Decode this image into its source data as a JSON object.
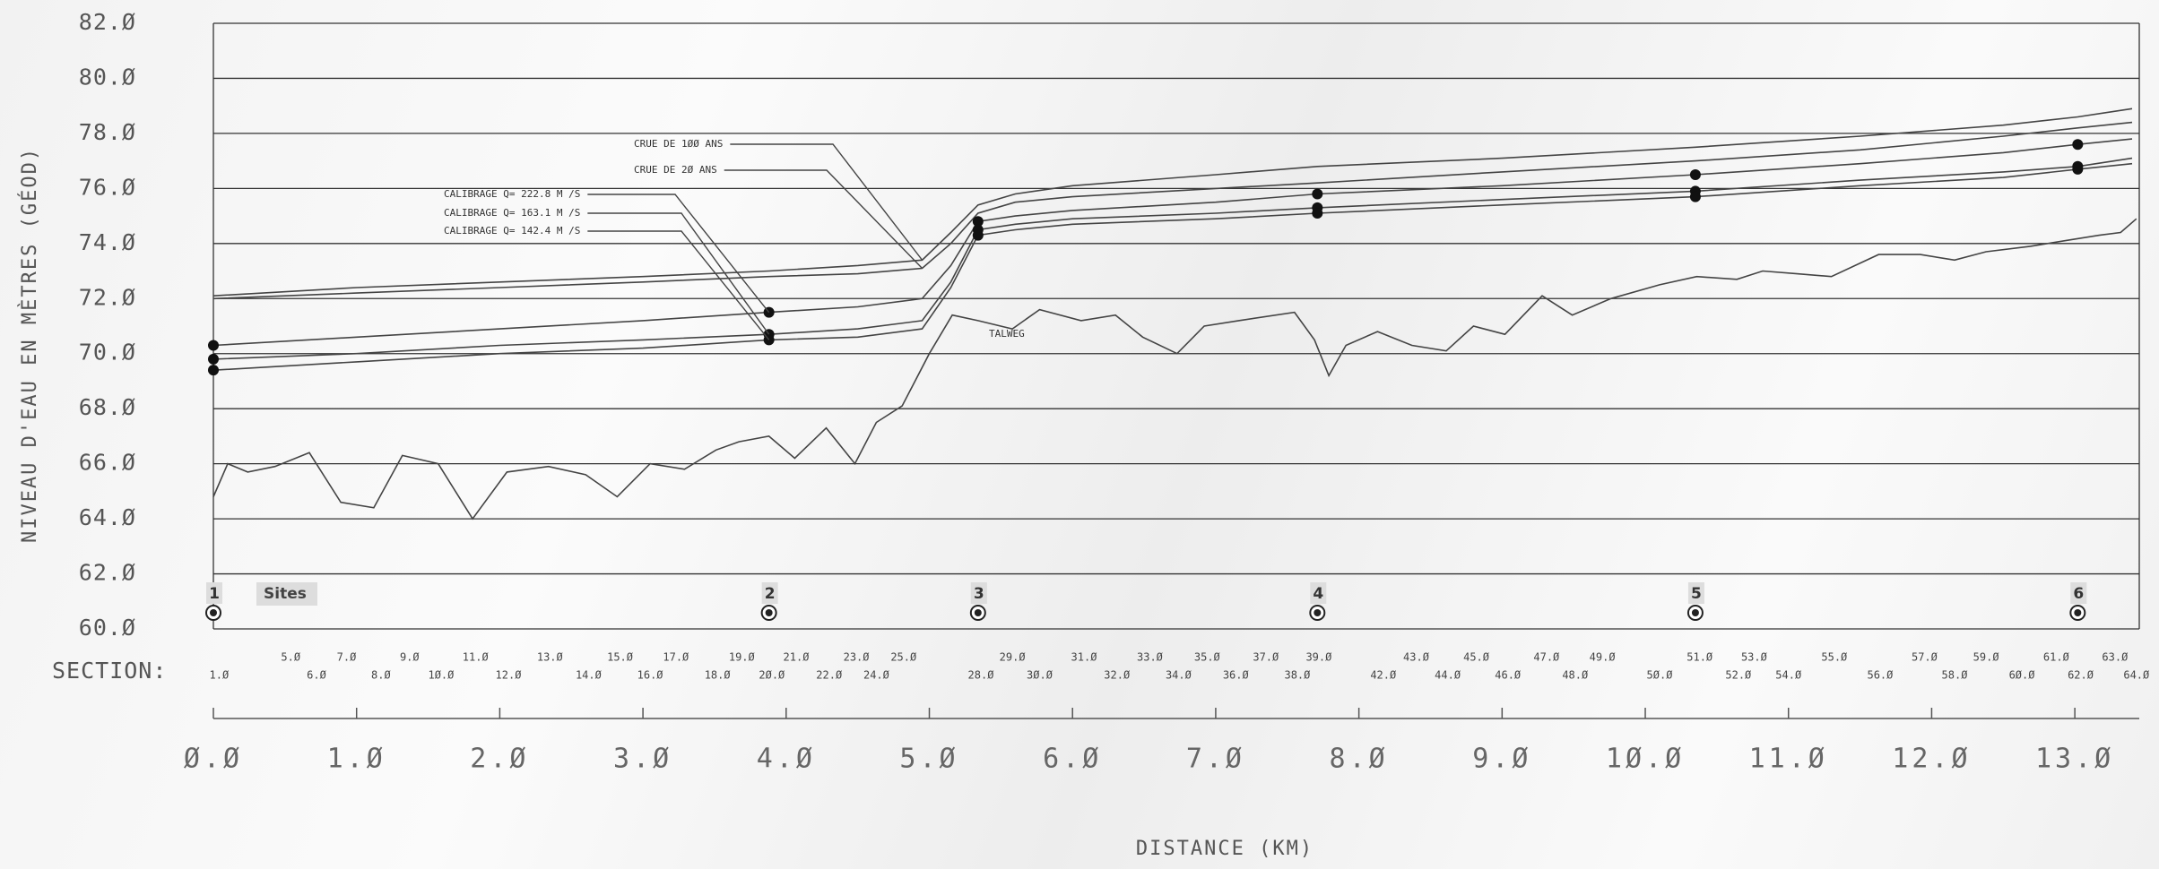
{
  "chart_data": {
    "type": "line",
    "y_label": "NIVEAU D'EAU EN MÈTRES (GÉOD)",
    "x_label": "DISTANCE (KM)",
    "ylim": [
      60,
      82
    ],
    "yticks": [
      {
        "value": 60,
        "label": "60.Ø"
      },
      {
        "value": 62,
        "label": "62.Ø"
      },
      {
        "value": 64,
        "label": "64.Ø"
      },
      {
        "value": 66,
        "label": "66.Ø"
      },
      {
        "value": 68,
        "label": "68.Ø"
      },
      {
        "value": 70,
        "label": "70.Ø"
      },
      {
        "value": 72,
        "label": "72.Ø"
      },
      {
        "value": 74,
        "label": "74.Ø"
      },
      {
        "value": 76,
        "label": "76.Ø"
      },
      {
        "value": 78,
        "label": "78.Ø"
      },
      {
        "value": 80,
        "label": "80.Ø"
      },
      {
        "value": 82,
        "label": "82.Ø"
      }
    ],
    "xlim": [
      0,
      13.45
    ],
    "xticks": [
      {
        "value": 0,
        "label": "Ø.Ø"
      },
      {
        "value": 1,
        "label": "1.Ø"
      },
      {
        "value": 2,
        "label": "2.Ø"
      },
      {
        "value": 3,
        "label": "3.Ø"
      },
      {
        "value": 4,
        "label": "4.Ø"
      },
      {
        "value": 5,
        "label": "5.Ø"
      },
      {
        "value": 6,
        "label": "6.Ø"
      },
      {
        "value": 7,
        "label": "7.Ø"
      },
      {
        "value": 8,
        "label": "8.Ø"
      },
      {
        "value": 9,
        "label": "9.Ø"
      },
      {
        "value": 10,
        "label": "1Ø.Ø"
      },
      {
        "value": 11,
        "label": "11.Ø"
      },
      {
        "value": 12,
        "label": "12.Ø"
      },
      {
        "value": 13,
        "label": "13.Ø"
      }
    ],
    "grid": true,
    "series": [
      {
        "name": "CRUE DE 1ØØ ANS",
        "color": "#444444",
        "x": [
          0,
          1,
          2,
          3,
          3.88,
          4.5,
          4.95,
          5.15,
          5.34,
          5.6,
          6.0,
          7.0,
          7.71,
          9.0,
          10.35,
          11.5,
          12.5,
          13.02,
          13.4
        ],
        "values": [
          72.1,
          72.4,
          72.6,
          72.8,
          73.0,
          73.2,
          73.4,
          74.4,
          75.4,
          75.8,
          76.1,
          76.5,
          76.8,
          77.1,
          77.5,
          77.9,
          78.3,
          78.6,
          78.9
        ]
      },
      {
        "name": "CRUE DE 2Ø ANS",
        "color": "#444444",
        "x": [
          0,
          1,
          2,
          3,
          3.88,
          4.5,
          4.95,
          5.15,
          5.34,
          5.6,
          6.0,
          7.0,
          7.71,
          9.0,
          10.35,
          11.5,
          12.5,
          13.02,
          13.4
        ],
        "values": [
          72.0,
          72.2,
          72.4,
          72.6,
          72.8,
          72.9,
          73.1,
          74.0,
          75.1,
          75.5,
          75.7,
          76.0,
          76.2,
          76.6,
          77.0,
          77.4,
          77.9,
          78.2,
          78.4
        ]
      },
      {
        "name": "CALIBRAGE Q= 222.8 M /S",
        "color": "#444444",
        "marker": "dot",
        "x": [
          0,
          1,
          2,
          3,
          3.88,
          4.5,
          4.95,
          5.15,
          5.34,
          5.6,
          6.0,
          7.0,
          7.71,
          9.0,
          10.35,
          11.5,
          12.5,
          13.02,
          13.4
        ],
        "values": [
          70.3,
          70.6,
          70.9,
          71.2,
          71.5,
          71.7,
          72.0,
          73.2,
          74.8,
          75.0,
          75.2,
          75.5,
          75.8,
          76.1,
          76.5,
          76.9,
          77.3,
          77.6,
          77.8
        ]
      },
      {
        "name": "CALIBRAGE Q= 163.1 M /S",
        "color": "#444444",
        "marker": "dot",
        "x": [
          0,
          1,
          2,
          3,
          3.88,
          4.5,
          4.95,
          5.15,
          5.34,
          5.6,
          6.0,
          7.0,
          7.71,
          9.0,
          10.35,
          11.5,
          12.5,
          13.02,
          13.4
        ],
        "values": [
          69.8,
          70.0,
          70.3,
          70.5,
          70.7,
          70.9,
          71.2,
          72.6,
          74.5,
          74.7,
          74.9,
          75.1,
          75.3,
          75.6,
          75.9,
          76.3,
          76.6,
          76.8,
          77.1
        ]
      },
      {
        "name": "CALIBRAGE Q= 142.4 M /S",
        "color": "#444444",
        "marker": "dot",
        "x": [
          0,
          1,
          2,
          3,
          3.88,
          4.5,
          4.95,
          5.15,
          5.34,
          5.6,
          6.0,
          7.0,
          7.71,
          9.0,
          10.35,
          11.5,
          12.5,
          13.02,
          13.4
        ],
        "values": [
          69.4,
          69.7,
          70.0,
          70.2,
          70.5,
          70.6,
          70.9,
          72.4,
          74.3,
          74.5,
          74.7,
          74.9,
          75.1,
          75.4,
          75.7,
          76.1,
          76.4,
          76.7,
          76.9
        ]
      },
      {
        "name": "TALWEG",
        "color": "#555555",
        "x": [
          0,
          0.1,
          0.24,
          0.43,
          0.67,
          0.89,
          1.12,
          1.32,
          1.57,
          1.81,
          2.05,
          2.34,
          2.6,
          2.82,
          3.05,
          3.29,
          3.51,
          3.67,
          3.88,
          4.06,
          4.28,
          4.48,
          4.63,
          4.81,
          5.0,
          5.16,
          5.34,
          5.58,
          5.77,
          6.06,
          6.3,
          6.49,
          6.73,
          6.92,
          7.16,
          7.55,
          7.69,
          7.79,
          7.91,
          8.13,
          8.37,
          8.61,
          8.8,
          9.02,
          9.28,
          9.49,
          9.76,
          10.1,
          10.36,
          10.64,
          10.82,
          11.06,
          11.3,
          11.63,
          11.92,
          12.16,
          12.38,
          12.69,
          12.93,
          13.17,
          13.32,
          13.43
        ],
        "values": [
          64.8,
          66.0,
          65.7,
          65.9,
          66.4,
          64.6,
          64.4,
          66.3,
          66.0,
          64.0,
          65.7,
          65.9,
          65.6,
          64.8,
          66.0,
          65.8,
          66.5,
          66.8,
          67.0,
          66.2,
          67.3,
          66.0,
          67.5,
          68.1,
          70.0,
          71.4,
          71.2,
          70.9,
          71.6,
          71.2,
          71.4,
          70.6,
          70.0,
          71.0,
          71.2,
          71.5,
          70.5,
          69.2,
          70.3,
          70.8,
          70.3,
          70.1,
          71.0,
          70.7,
          72.1,
          71.4,
          72.0,
          72.5,
          72.8,
          72.7,
          73.0,
          72.9,
          72.8,
          73.6,
          73.6,
          73.4,
          73.7,
          73.9,
          74.1,
          74.3,
          74.4,
          74.9
        ]
      }
    ],
    "sites": {
      "title": "Sites",
      "labels": [
        "1",
        "2",
        "3",
        "4",
        "5",
        "6"
      ],
      "x": [
        0,
        3.88,
        5.34,
        7.71,
        10.35,
        13.02
      ]
    },
    "section_label": "SECTION:",
    "sections": {
      "labels": [
        "1.Ø",
        "5.Ø",
        "6.Ø",
        "7.Ø",
        "8.Ø",
        "9.Ø",
        "1Ø.Ø",
        "11.Ø",
        "12.Ø",
        "13.Ø",
        "14.Ø",
        "15.Ø",
        "16.Ø",
        "17.Ø",
        "18.Ø",
        "19.Ø",
        "2Ø.Ø",
        "21.Ø",
        "22.Ø",
        "23.Ø",
        "24.Ø",
        "25.Ø",
        "28.Ø",
        "29.Ø",
        "3Ø.Ø",
        "31.Ø",
        "32.Ø",
        "33.Ø",
        "34.Ø",
        "35.Ø",
        "36.Ø",
        "37.Ø",
        "38.Ø",
        "39.Ø",
        "42.Ø",
        "43.Ø",
        "44.Ø",
        "45.Ø",
        "46.Ø",
        "47.Ø",
        "48.Ø",
        "49.Ø",
        "5Ø.Ø",
        "51.Ø",
        "52.Ø",
        "53.Ø",
        "54.Ø",
        "55.Ø",
        "56.Ø",
        "57.Ø",
        "58.Ø",
        "59.Ø",
        "6Ø.Ø",
        "61.Ø",
        "62.Ø",
        "63.Ø",
        "64.Ø"
      ],
      "x": [
        0.04,
        0.54,
        0.72,
        0.93,
        1.17,
        1.37,
        1.59,
        1.83,
        2.06,
        2.35,
        2.62,
        2.84,
        3.05,
        3.23,
        3.52,
        3.69,
        3.9,
        4.07,
        4.3,
        4.49,
        4.63,
        4.82,
        5.36,
        5.58,
        5.77,
        6.08,
        6.31,
        6.54,
        6.74,
        6.94,
        7.14,
        7.35,
        7.57,
        7.72,
        8.17,
        8.4,
        8.62,
        8.82,
        9.04,
        9.31,
        9.51,
        9.7,
        10.1,
        10.38,
        10.65,
        10.76,
        11.0,
        11.32,
        11.64,
        11.95,
        12.16,
        12.38,
        12.63,
        12.87,
        13.04,
        13.28,
        13.43
      ]
    }
  }
}
